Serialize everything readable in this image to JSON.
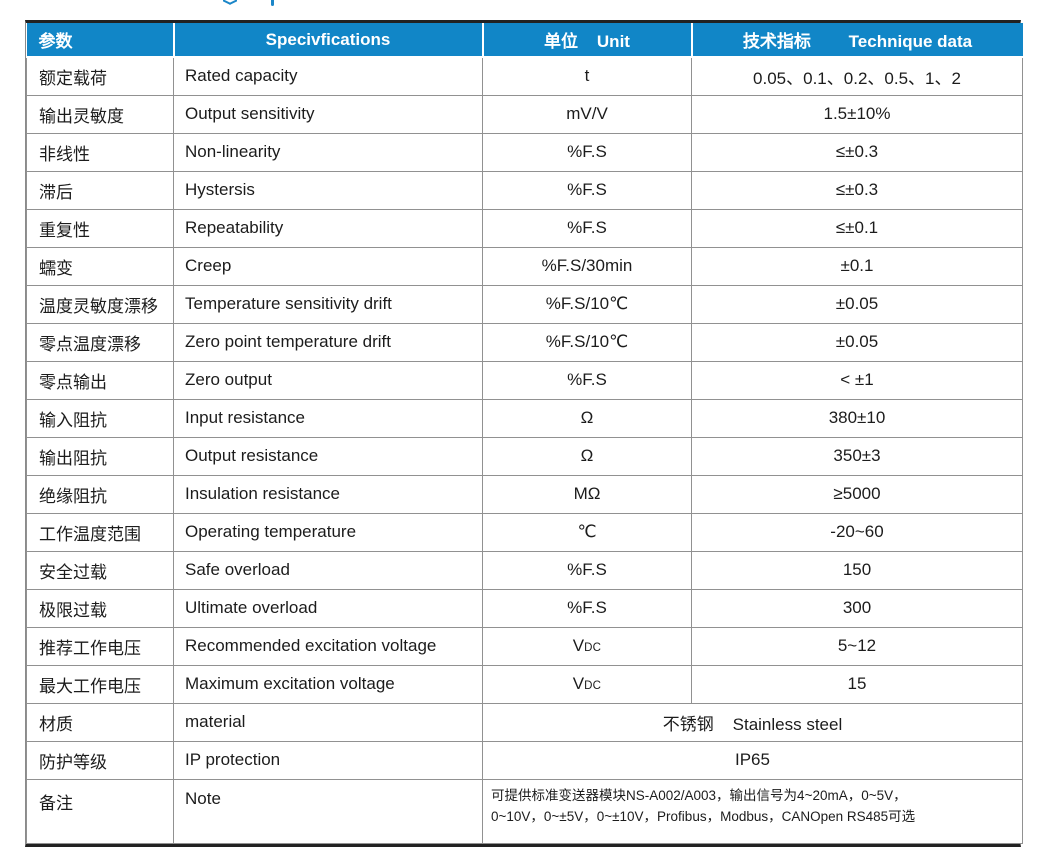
{
  "colors": {
    "header_bg": "#1186c7",
    "header_text": "#ffffff",
    "body_text": "#1c1c1c",
    "grid_line": "#919191",
    "outer_border": "#222222"
  },
  "table": {
    "header": {
      "param": "参数",
      "spec": "Specivfications",
      "unit": "单位    Unit",
      "tech": "技术指标        Technique data"
    },
    "rows": [
      {
        "zh": "额定载荷",
        "en": "Rated capacity",
        "unit": "t",
        "value": "0.05、0.1、0.2、0.5、1、2"
      },
      {
        "zh": "输出灵敏度",
        "en": "Output sensitivity",
        "unit": "mV/V",
        "value": "1.5±10%"
      },
      {
        "zh": "非线性",
        "en": "Non-linearity",
        "unit": "%F.S",
        "value": "≤±0.3"
      },
      {
        "zh": "滞后",
        "en": "Hystersis",
        "unit": "%F.S",
        "value": "≤±0.3"
      },
      {
        "zh": "重复性",
        "en": "Repeatability",
        "unit": "%F.S",
        "value": "≤±0.1"
      },
      {
        "zh": "蠕变",
        "en": "Creep",
        "unit": "%F.S/30min",
        "value": "±0.1"
      },
      {
        "zh": "温度灵敏度漂移",
        "en": "Temperature sensitivity drift",
        "unit": "%F.S/10℃",
        "value": "±0.05"
      },
      {
        "zh": "零点温度漂移",
        "en": "Zero point temperature drift",
        "unit": "%F.S/10℃",
        "value": "±0.05"
      },
      {
        "zh": "零点输出",
        "en": "Zero output",
        "unit": "%F.S",
        "value": "< ±1"
      },
      {
        "zh": "输入阻抗",
        "en": "Input resistance",
        "unit": "Ω",
        "value": "380±10"
      },
      {
        "zh": "输出阻抗",
        "en": "Output resistance",
        "unit": "Ω",
        "value": "350±3"
      },
      {
        "zh": "绝缘阻抗",
        "en": "Insulation resistance",
        "unit": "MΩ",
        "value": "≥5000"
      },
      {
        "zh": "工作温度范围",
        "en": "Operating temperature",
        "unit": "℃",
        "value": "-20~60"
      },
      {
        "zh": "安全过载",
        "en": "Safe overload",
        "unit": "%F.S",
        "value": "150"
      },
      {
        "zh": "极限过载",
        "en": "Ultimate overload",
        "unit": "%F.S",
        "value": "300"
      },
      {
        "zh": "推荐工作电压",
        "en": "Recommended excitation voltage",
        "unit": "V",
        "unit_small": "DC",
        "value": "5~12"
      },
      {
        "zh": "最大工作电压",
        "en": "Maximum excitation voltage",
        "unit": "V",
        "unit_small": "DC",
        "value": "15"
      },
      {
        "zh": "材质",
        "en": "material",
        "merged_value": "不锈钢    Stainless steel"
      },
      {
        "zh": "防护等级",
        "en": "IP protection",
        "merged_value": "IP65"
      },
      {
        "zh": "备注",
        "en": "Note",
        "note": true,
        "merged_value": "可提供标准变送器模块NS-A002/A003，输出信号为4~20mA，0~5V，\n0~10V，0~±5V，0~±10V，Profibus，Modbus，CANOpen RS485可选"
      }
    ]
  }
}
